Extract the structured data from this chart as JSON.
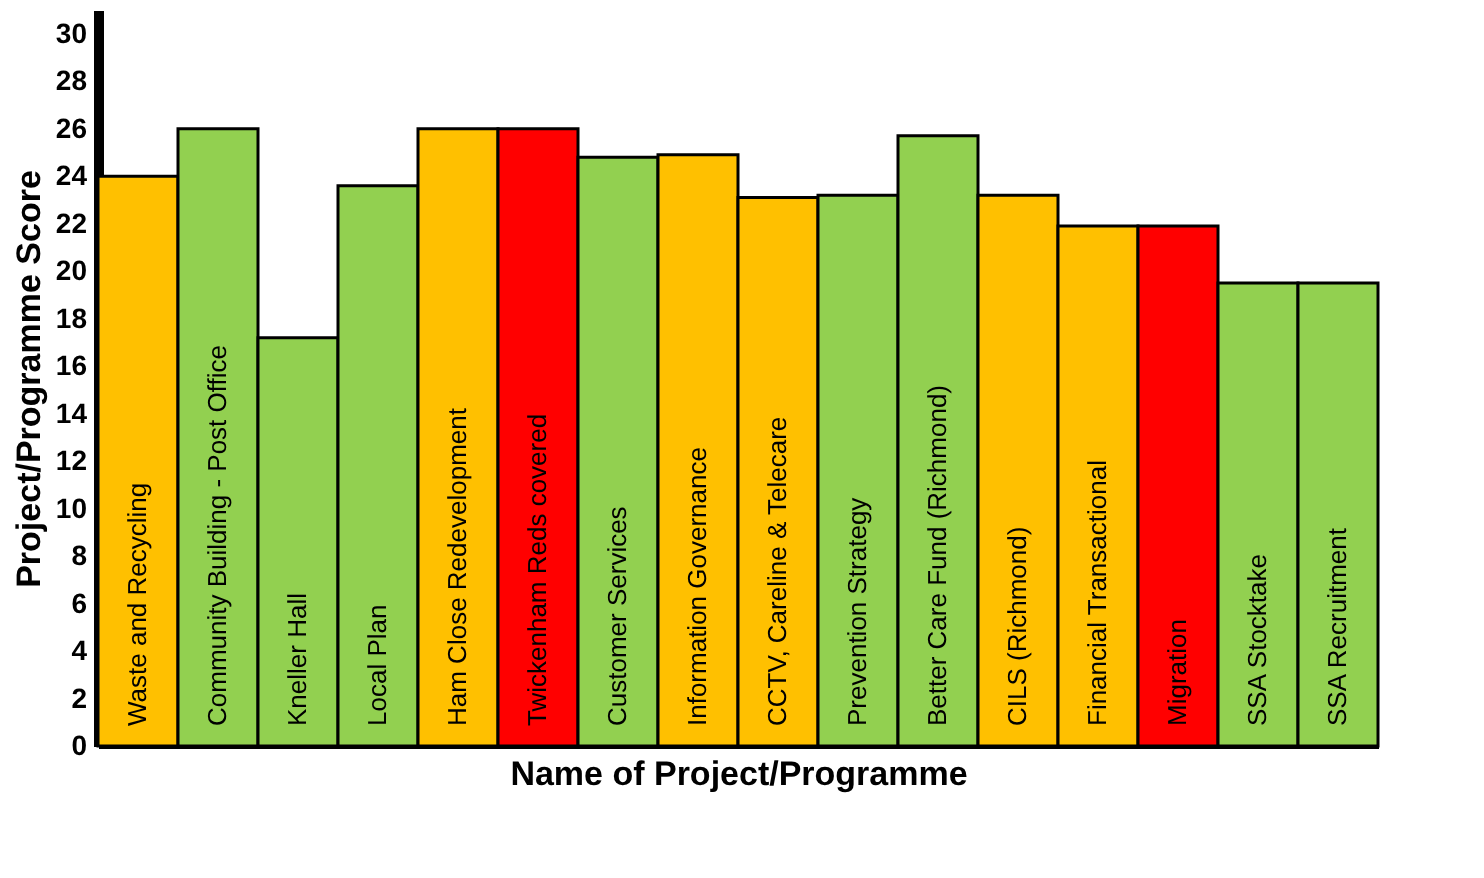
{
  "chart_data": {
    "type": "bar",
    "xlabel": "Name of Project/Programme",
    "ylabel": "Project/Programme Score",
    "categories": [
      "Waste and Recycling",
      "Community Building - Post Office",
      "Kneller Hall",
      "Local Plan",
      "Ham Close Redevelopment",
      "Twickenham Reds covered",
      "Customer Services",
      "Information Governance",
      "CCTV, Careline & Telecare",
      "Prevention Strategy",
      "Better Care Fund (Richmond)",
      "CILS (Richmond)",
      "Financial Transactional",
      "Migration",
      "SSA Stocktake",
      "SSA Recruitment"
    ],
    "values": [
      24,
      26,
      17.2,
      23.6,
      26,
      26,
      24.8,
      24.9,
      23.1,
      23.2,
      25.7,
      23.2,
      21.9,
      21.9,
      19.5,
      19.5
    ],
    "colors": [
      "#ffc000",
      "#92d050",
      "#92d050",
      "#92d050",
      "#ffc000",
      "#ff0000",
      "#92d050",
      "#ffc000",
      "#ffc000",
      "#92d050",
      "#92d050",
      "#ffc000",
      "#ffc000",
      "#ff0000",
      "#92d050",
      "#92d050"
    ],
    "ylim": [
      0,
      31
    ],
    "yticks": [
      0,
      2,
      4,
      6,
      8,
      10,
      12,
      14,
      16,
      18,
      20,
      22,
      24,
      26,
      28,
      30
    ],
    "grid": false
  }
}
